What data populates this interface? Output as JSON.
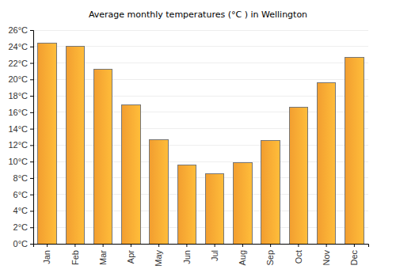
{
  "chart_data": {
    "type": "bar",
    "title": "Average monthly temperatures (°C ) in Wellington",
    "categories": [
      "Jan",
      "Feb",
      "Mar",
      "Apr",
      "May",
      "Jun",
      "Jul",
      "Aug",
      "Sep",
      "Oct",
      "Nov",
      "Dec"
    ],
    "values": [
      24.4,
      24.0,
      21.2,
      16.9,
      12.7,
      9.6,
      8.5,
      9.9,
      12.6,
      16.6,
      19.6,
      22.7
    ],
    "color": "#ffa733",
    "ylim": [
      0,
      26
    ],
    "yticks": [
      {
        "value": 0,
        "label": "0°C"
      },
      {
        "value": 2,
        "label": "2°C"
      },
      {
        "value": 4,
        "label": "4°C"
      },
      {
        "value": 6,
        "label": "6°C"
      },
      {
        "value": 8,
        "label": "8°C"
      },
      {
        "value": 10,
        "label": "10°C"
      },
      {
        "value": 12,
        "label": "12°C"
      },
      {
        "value": 14,
        "label": "14°C"
      },
      {
        "value": 16,
        "label": "16°C"
      },
      {
        "value": 18,
        "label": "18°C"
      },
      {
        "value": 20,
        "label": "20°C"
      },
      {
        "value": 22,
        "label": "22°C"
      },
      {
        "value": 24,
        "label": "24°C"
      },
      {
        "value": 26,
        "label": "26°C"
      }
    ],
    "grid": true
  }
}
